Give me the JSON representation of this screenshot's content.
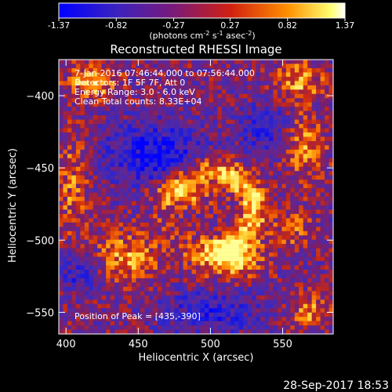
{
  "chart_data": {
    "type": "heatmap",
    "title": "Reconstructed RHESSI Image",
    "colorbar": {
      "ticks": [
        "-1.37",
        "-0.82",
        "-0.27",
        "0.27",
        "0.82",
        "1.37"
      ],
      "tick_values": [
        -1.37,
        -0.82,
        -0.27,
        0.27,
        0.82,
        1.37
      ],
      "range": [
        -1.37,
        1.37
      ]
    },
    "xlabel": "Heliocentric X (arcsec)",
    "ylabel": "Heliocentric Y (arcsec)",
    "xlim": [
      395,
      585
    ],
    "ylim": [
      -565,
      -375
    ],
    "xticks": [
      400,
      450,
      500,
      550
    ],
    "yticks": [
      -400,
      -450,
      -500,
      -550
    ],
    "annotations": [
      "7-Jan-2016 07:46:44.000 to 07:56:44.000",
      "Detectors: 1F 5F 7F, Att 0",
      "Energy Range: 3.0 - 6.0 keV",
      "Clean",
      "Total counts: 8.33E+04"
    ],
    "peak_label": "Position of Peak = [435,-390]",
    "peak": [
      435,
      -390
    ],
    "date_stamp": "28-Sep-2017 18:53",
    "grid": "off",
    "colormap": [
      "#0000ff",
      "#5a2aa0",
      "#7a1a7a",
      "#cc2a10",
      "#ff8c00",
      "#ffff70",
      "#ffffff"
    ]
  },
  "colorbar_unit_text": "(photons cm"
}
